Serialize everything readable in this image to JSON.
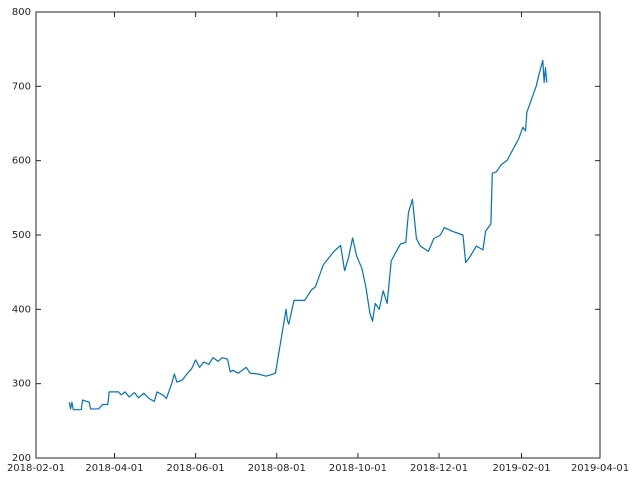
{
  "chart_data": {
    "type": "line",
    "x": [
      "2018-02-26",
      "2018-02-27",
      "2018-02-28",
      "2018-03-01",
      "2018-03-07",
      "2018-03-08",
      "2018-03-13",
      "2018-03-14",
      "2018-03-20",
      "2018-03-23",
      "2018-03-27",
      "2018-03-28",
      "2018-04-04",
      "2018-04-06",
      "2018-04-09",
      "2018-04-12",
      "2018-04-16",
      "2018-04-19",
      "2018-04-23",
      "2018-04-27",
      "2018-05-01",
      "2018-05-03",
      "2018-05-08",
      "2018-05-10",
      "2018-05-14",
      "2018-05-16",
      "2018-05-18",
      "2018-05-22",
      "2018-05-25",
      "2018-05-29",
      "2018-06-01",
      "2018-06-04",
      "2018-06-07",
      "2018-06-11",
      "2018-06-14",
      "2018-06-18",
      "2018-06-21",
      "2018-06-25",
      "2018-06-27",
      "2018-06-29",
      "2018-07-03",
      "2018-07-09",
      "2018-07-12",
      "2018-07-18",
      "2018-07-24",
      "2018-07-31",
      "2018-08-08",
      "2018-08-09",
      "2018-08-10",
      "2018-08-14",
      "2018-08-22",
      "2018-08-27",
      "2018-08-30",
      "2018-09-05",
      "2018-09-13",
      "2018-09-18",
      "2018-09-21",
      "2018-09-24",
      "2018-09-27",
      "2018-09-30",
      "2018-10-04",
      "2018-10-07",
      "2018-10-10",
      "2018-10-12",
      "2018-10-14",
      "2018-10-17",
      "2018-10-20",
      "2018-10-23",
      "2018-10-26",
      "2018-10-29",
      "2018-11-02",
      "2018-11-06",
      "2018-11-08",
      "2018-11-11",
      "2018-11-14",
      "2018-11-17",
      "2018-11-23",
      "2018-11-27",
      "2018-12-02",
      "2018-12-05",
      "2018-12-11",
      "2018-12-19",
      "2018-12-21",
      "2018-12-24",
      "2018-12-29",
      "2019-01-03",
      "2019-01-05",
      "2019-01-09",
      "2019-01-10",
      "2019-01-13",
      "2019-01-17",
      "2019-01-21",
      "2019-01-27",
      "2019-01-30",
      "2019-02-02",
      "2019-02-04",
      "2019-02-05",
      "2019-02-08",
      "2019-02-12",
      "2019-02-14",
      "2019-02-17",
      "2019-02-18",
      "2019-02-19",
      "2019-02-20"
    ],
    "series": [
      {
        "color": "#0072bd",
        "values": [
          275,
          266,
          275,
          265,
          265,
          278,
          275,
          266,
          266,
          272,
          272,
          289,
          289,
          285,
          289,
          282,
          288,
          281,
          287,
          280,
          276,
          289,
          284,
          280,
          300,
          313,
          302,
          305,
          312,
          320,
          332,
          322,
          329,
          326,
          335,
          330,
          335,
          333,
          316,
          318,
          314,
          322,
          314,
          313,
          310,
          314,
          400,
          385,
          380,
          412,
          412,
          426,
          430,
          460,
          478,
          486,
          452,
          470,
          496,
          472,
          455,
          430,
          395,
          384,
          408,
          400,
          425,
          408,
          465,
          475,
          488,
          490,
          530,
          548,
          495,
          485,
          478,
          495,
          500,
          510,
          505,
          500,
          463,
          470,
          485,
          480,
          505,
          515,
          583,
          585,
          595,
          600,
          620,
          630,
          645,
          640,
          665,
          680,
          700,
          715,
          735,
          705,
          725,
          705
        ]
      }
    ],
    "xlim": [
      "2018-02-01",
      "2019-04-01"
    ],
    "xticks": [
      "2018-02-01",
      "2018-04-01",
      "2018-06-01",
      "2018-08-01",
      "2018-10-01",
      "2018-12-01",
      "2019-02-01",
      "2019-04-01"
    ],
    "ylim": [
      200,
      800
    ],
    "yticks": [
      200,
      300,
      400,
      500,
      600,
      700,
      800
    ]
  }
}
